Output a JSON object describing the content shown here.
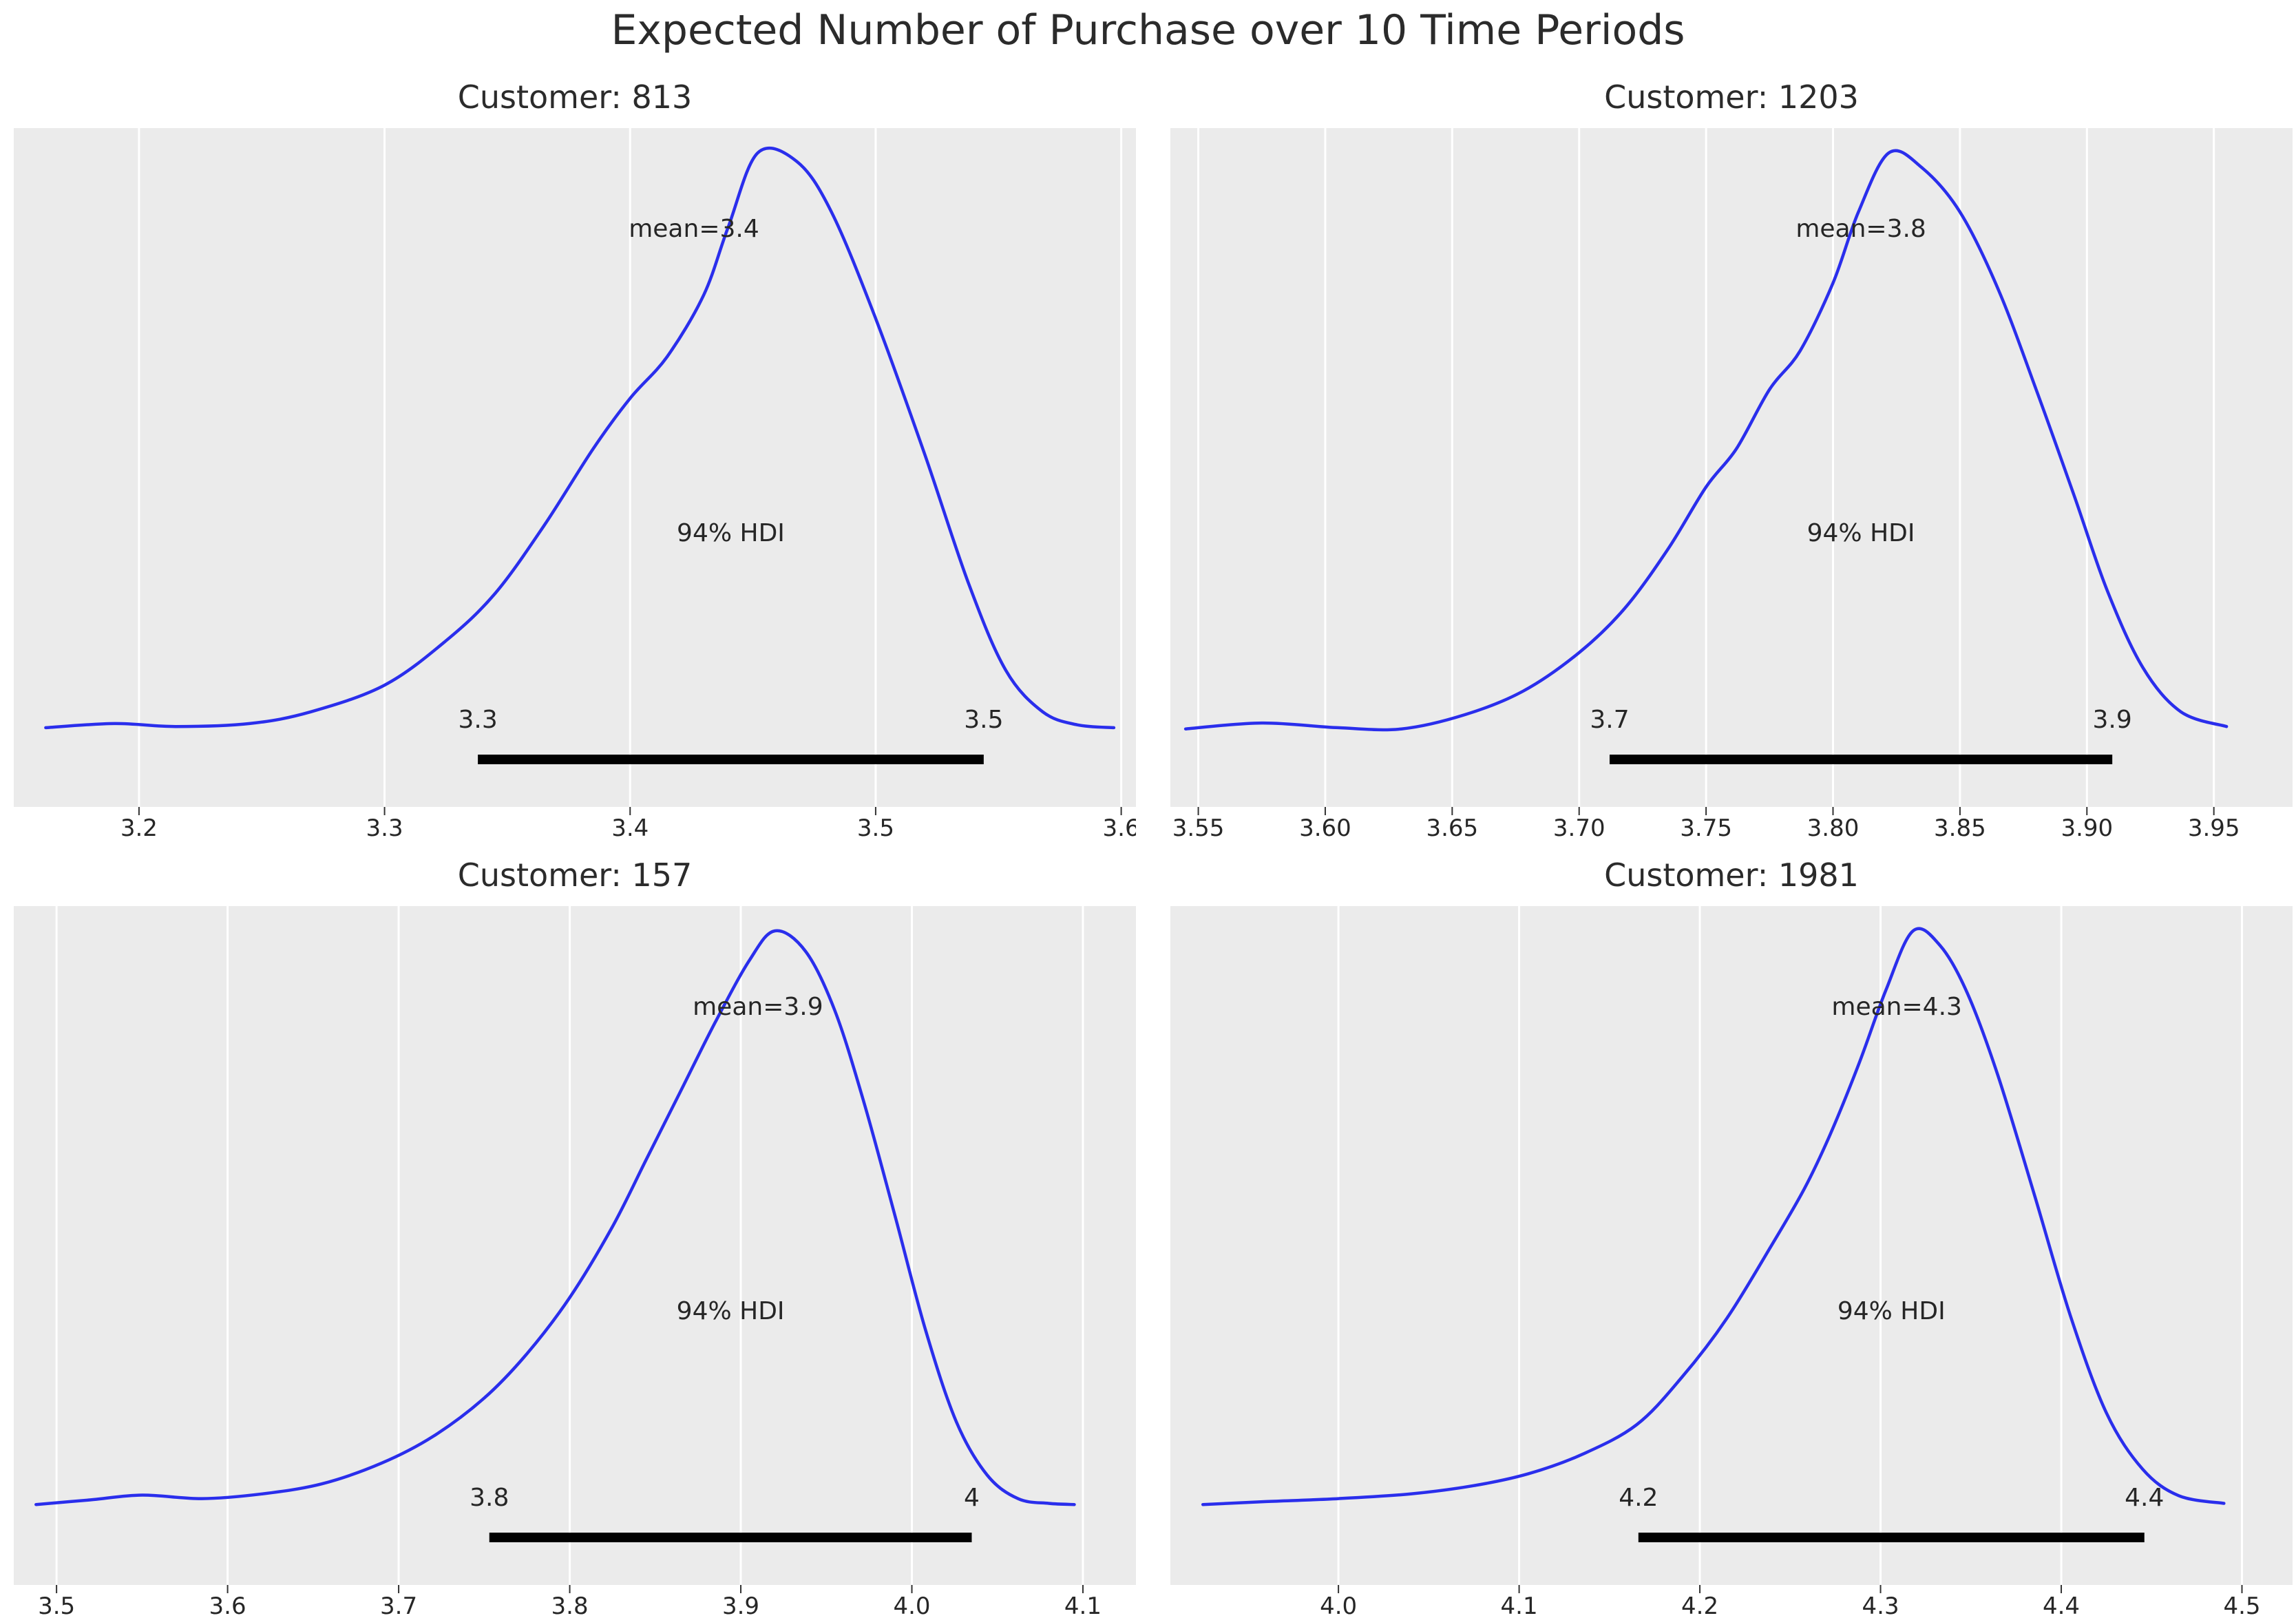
{
  "figure": {
    "title": "Expected Number of Purchase over 10 Time Periods"
  },
  "style": {
    "curve_color": "#2a2eec",
    "hdi_line_color": "#000000",
    "panel_bg": "#ebebeb",
    "grid_color": "#ffffff",
    "text_color": "#262626",
    "tick_color": "#333333"
  },
  "chart_data": [
    {
      "type": "kde-posterior",
      "title": "Customer: 813",
      "mean": 3.4,
      "mean_label": "mean=3.4",
      "hdi": {
        "lo": 3.338,
        "hi": 3.544,
        "probability": "94%",
        "text": "94% HDI",
        "label_lo": "3.3",
        "label_hi": "3.5"
      },
      "xlim": [
        3.149,
        3.606
      ],
      "peak_x": 3.452,
      "tick_values": [
        3.2,
        3.3,
        3.4,
        3.5,
        3.6
      ],
      "tick_labels": [
        "3.2",
        "3.3",
        "3.4",
        "3.5",
        "3.6"
      ],
      "curve_points": [
        [
          3.162,
          0.028
        ],
        [
          3.19,
          0.035
        ],
        [
          3.215,
          0.03
        ],
        [
          3.245,
          0.035
        ],
        [
          3.27,
          0.055
        ],
        [
          3.3,
          0.1
        ],
        [
          3.325,
          0.175
        ],
        [
          3.345,
          0.255
        ],
        [
          3.365,
          0.37
        ],
        [
          3.385,
          0.5
        ],
        [
          3.4,
          0.585
        ],
        [
          3.415,
          0.655
        ],
        [
          3.43,
          0.76
        ],
        [
          3.44,
          0.875
        ],
        [
          3.452,
          1.0
        ],
        [
          3.468,
          0.985
        ],
        [
          3.482,
          0.9
        ],
        [
          3.5,
          0.72
        ],
        [
          3.52,
          0.49
        ],
        [
          3.538,
          0.27
        ],
        [
          3.553,
          0.125
        ],
        [
          3.568,
          0.055
        ],
        [
          3.582,
          0.033
        ],
        [
          3.597,
          0.028
        ]
      ]
    },
    {
      "type": "kde-posterior",
      "title": "Customer: 1203",
      "mean": 3.8,
      "mean_label": "mean=3.8",
      "hdi": {
        "lo": 3.712,
        "hi": 3.91,
        "probability": "94%",
        "text": "94% HDI",
        "label_lo": "3.7",
        "label_hi": "3.9"
      },
      "xlim": [
        3.539,
        3.981
      ],
      "peak_x": 3.822,
      "tick_values": [
        3.55,
        3.6,
        3.65,
        3.7,
        3.75,
        3.8,
        3.85,
        3.9,
        3.95
      ],
      "tick_labels": [
        "3.55",
        "3.60",
        "3.65",
        "3.70",
        "3.75",
        "3.80",
        "3.85",
        "3.90",
        "3.95"
      ],
      "curve_points": [
        [
          3.545,
          0.026
        ],
        [
          3.575,
          0.036
        ],
        [
          3.605,
          0.028
        ],
        [
          3.63,
          0.026
        ],
        [
          3.655,
          0.05
        ],
        [
          3.678,
          0.09
        ],
        [
          3.7,
          0.155
        ],
        [
          3.718,
          0.23
        ],
        [
          3.735,
          0.33
        ],
        [
          3.75,
          0.435
        ],
        [
          3.762,
          0.5
        ],
        [
          3.775,
          0.6
        ],
        [
          3.787,
          0.665
        ],
        [
          3.8,
          0.78
        ],
        [
          3.81,
          0.9
        ],
        [
          3.822,
          1.0
        ],
        [
          3.835,
          0.975
        ],
        [
          3.85,
          0.9
        ],
        [
          3.865,
          0.77
        ],
        [
          3.88,
          0.6
        ],
        [
          3.895,
          0.42
        ],
        [
          3.908,
          0.26
        ],
        [
          3.922,
          0.13
        ],
        [
          3.937,
          0.055
        ],
        [
          3.955,
          0.03
        ]
      ]
    },
    {
      "type": "kde-posterior",
      "title": "Customer: 157",
      "mean": 3.9,
      "mean_label": "mean=3.9",
      "hdi": {
        "lo": 3.753,
        "hi": 4.035,
        "probability": "94%",
        "text": "94% HDI",
        "label_lo": "3.8",
        "label_hi": "4"
      },
      "xlim": [
        3.475,
        4.131
      ],
      "peak_x": 3.92,
      "tick_values": [
        3.5,
        3.6,
        3.7,
        3.8,
        3.9,
        4.0,
        4.1
      ],
      "tick_labels": [
        "3.5",
        "3.6",
        "3.7",
        "3.8",
        "3.9",
        "4.0",
        "4.1"
      ],
      "curve_points": [
        [
          3.488,
          0.03
        ],
        [
          3.52,
          0.038
        ],
        [
          3.55,
          0.046
        ],
        [
          3.585,
          0.04
        ],
        [
          3.62,
          0.048
        ],
        [
          3.655,
          0.065
        ],
        [
          3.69,
          0.1
        ],
        [
          3.72,
          0.145
        ],
        [
          3.75,
          0.21
        ],
        [
          3.775,
          0.285
        ],
        [
          3.8,
          0.38
        ],
        [
          3.825,
          0.5
        ],
        [
          3.845,
          0.615
        ],
        [
          3.865,
          0.73
        ],
        [
          3.885,
          0.845
        ],
        [
          3.905,
          0.95
        ],
        [
          3.92,
          1.0
        ],
        [
          3.938,
          0.965
        ],
        [
          3.955,
          0.865
        ],
        [
          3.972,
          0.71
        ],
        [
          3.99,
          0.52
        ],
        [
          4.008,
          0.325
        ],
        [
          4.026,
          0.17
        ],
        [
          4.044,
          0.08
        ],
        [
          4.062,
          0.04
        ],
        [
          4.08,
          0.032
        ],
        [
          4.095,
          0.03
        ]
      ]
    },
    {
      "type": "kde-posterior",
      "title": "Customer: 1981",
      "mean": 4.3,
      "mean_label": "mean=4.3",
      "hdi": {
        "lo": 4.166,
        "hi": 4.446,
        "probability": "94%",
        "text": "94% HDI",
        "label_lo": "4.2",
        "label_hi": "4.4"
      },
      "xlim": [
        3.907,
        4.528
      ],
      "peak_x": 4.318,
      "tick_values": [
        4.0,
        4.1,
        4.2,
        4.3,
        4.4,
        4.5
      ],
      "tick_labels": [
        "4.0",
        "4.1",
        "4.2",
        "4.3",
        "4.4",
        "4.5"
      ],
      "curve_points": [
        [
          3.925,
          0.03
        ],
        [
          3.96,
          0.035
        ],
        [
          4.0,
          0.04
        ],
        [
          4.04,
          0.048
        ],
        [
          4.075,
          0.062
        ],
        [
          4.105,
          0.082
        ],
        [
          4.135,
          0.115
        ],
        [
          4.165,
          0.165
        ],
        [
          4.19,
          0.245
        ],
        [
          4.215,
          0.345
        ],
        [
          4.24,
          0.47
        ],
        [
          4.258,
          0.565
        ],
        [
          4.272,
          0.655
        ],
        [
          4.288,
          0.775
        ],
        [
          4.303,
          0.9
        ],
        [
          4.318,
          1.0
        ],
        [
          4.333,
          0.975
        ],
        [
          4.348,
          0.895
        ],
        [
          4.365,
          0.755
        ],
        [
          4.385,
          0.555
        ],
        [
          4.405,
          0.35
        ],
        [
          4.425,
          0.185
        ],
        [
          4.445,
          0.09
        ],
        [
          4.465,
          0.045
        ],
        [
          4.49,
          0.032
        ]
      ]
    }
  ]
}
